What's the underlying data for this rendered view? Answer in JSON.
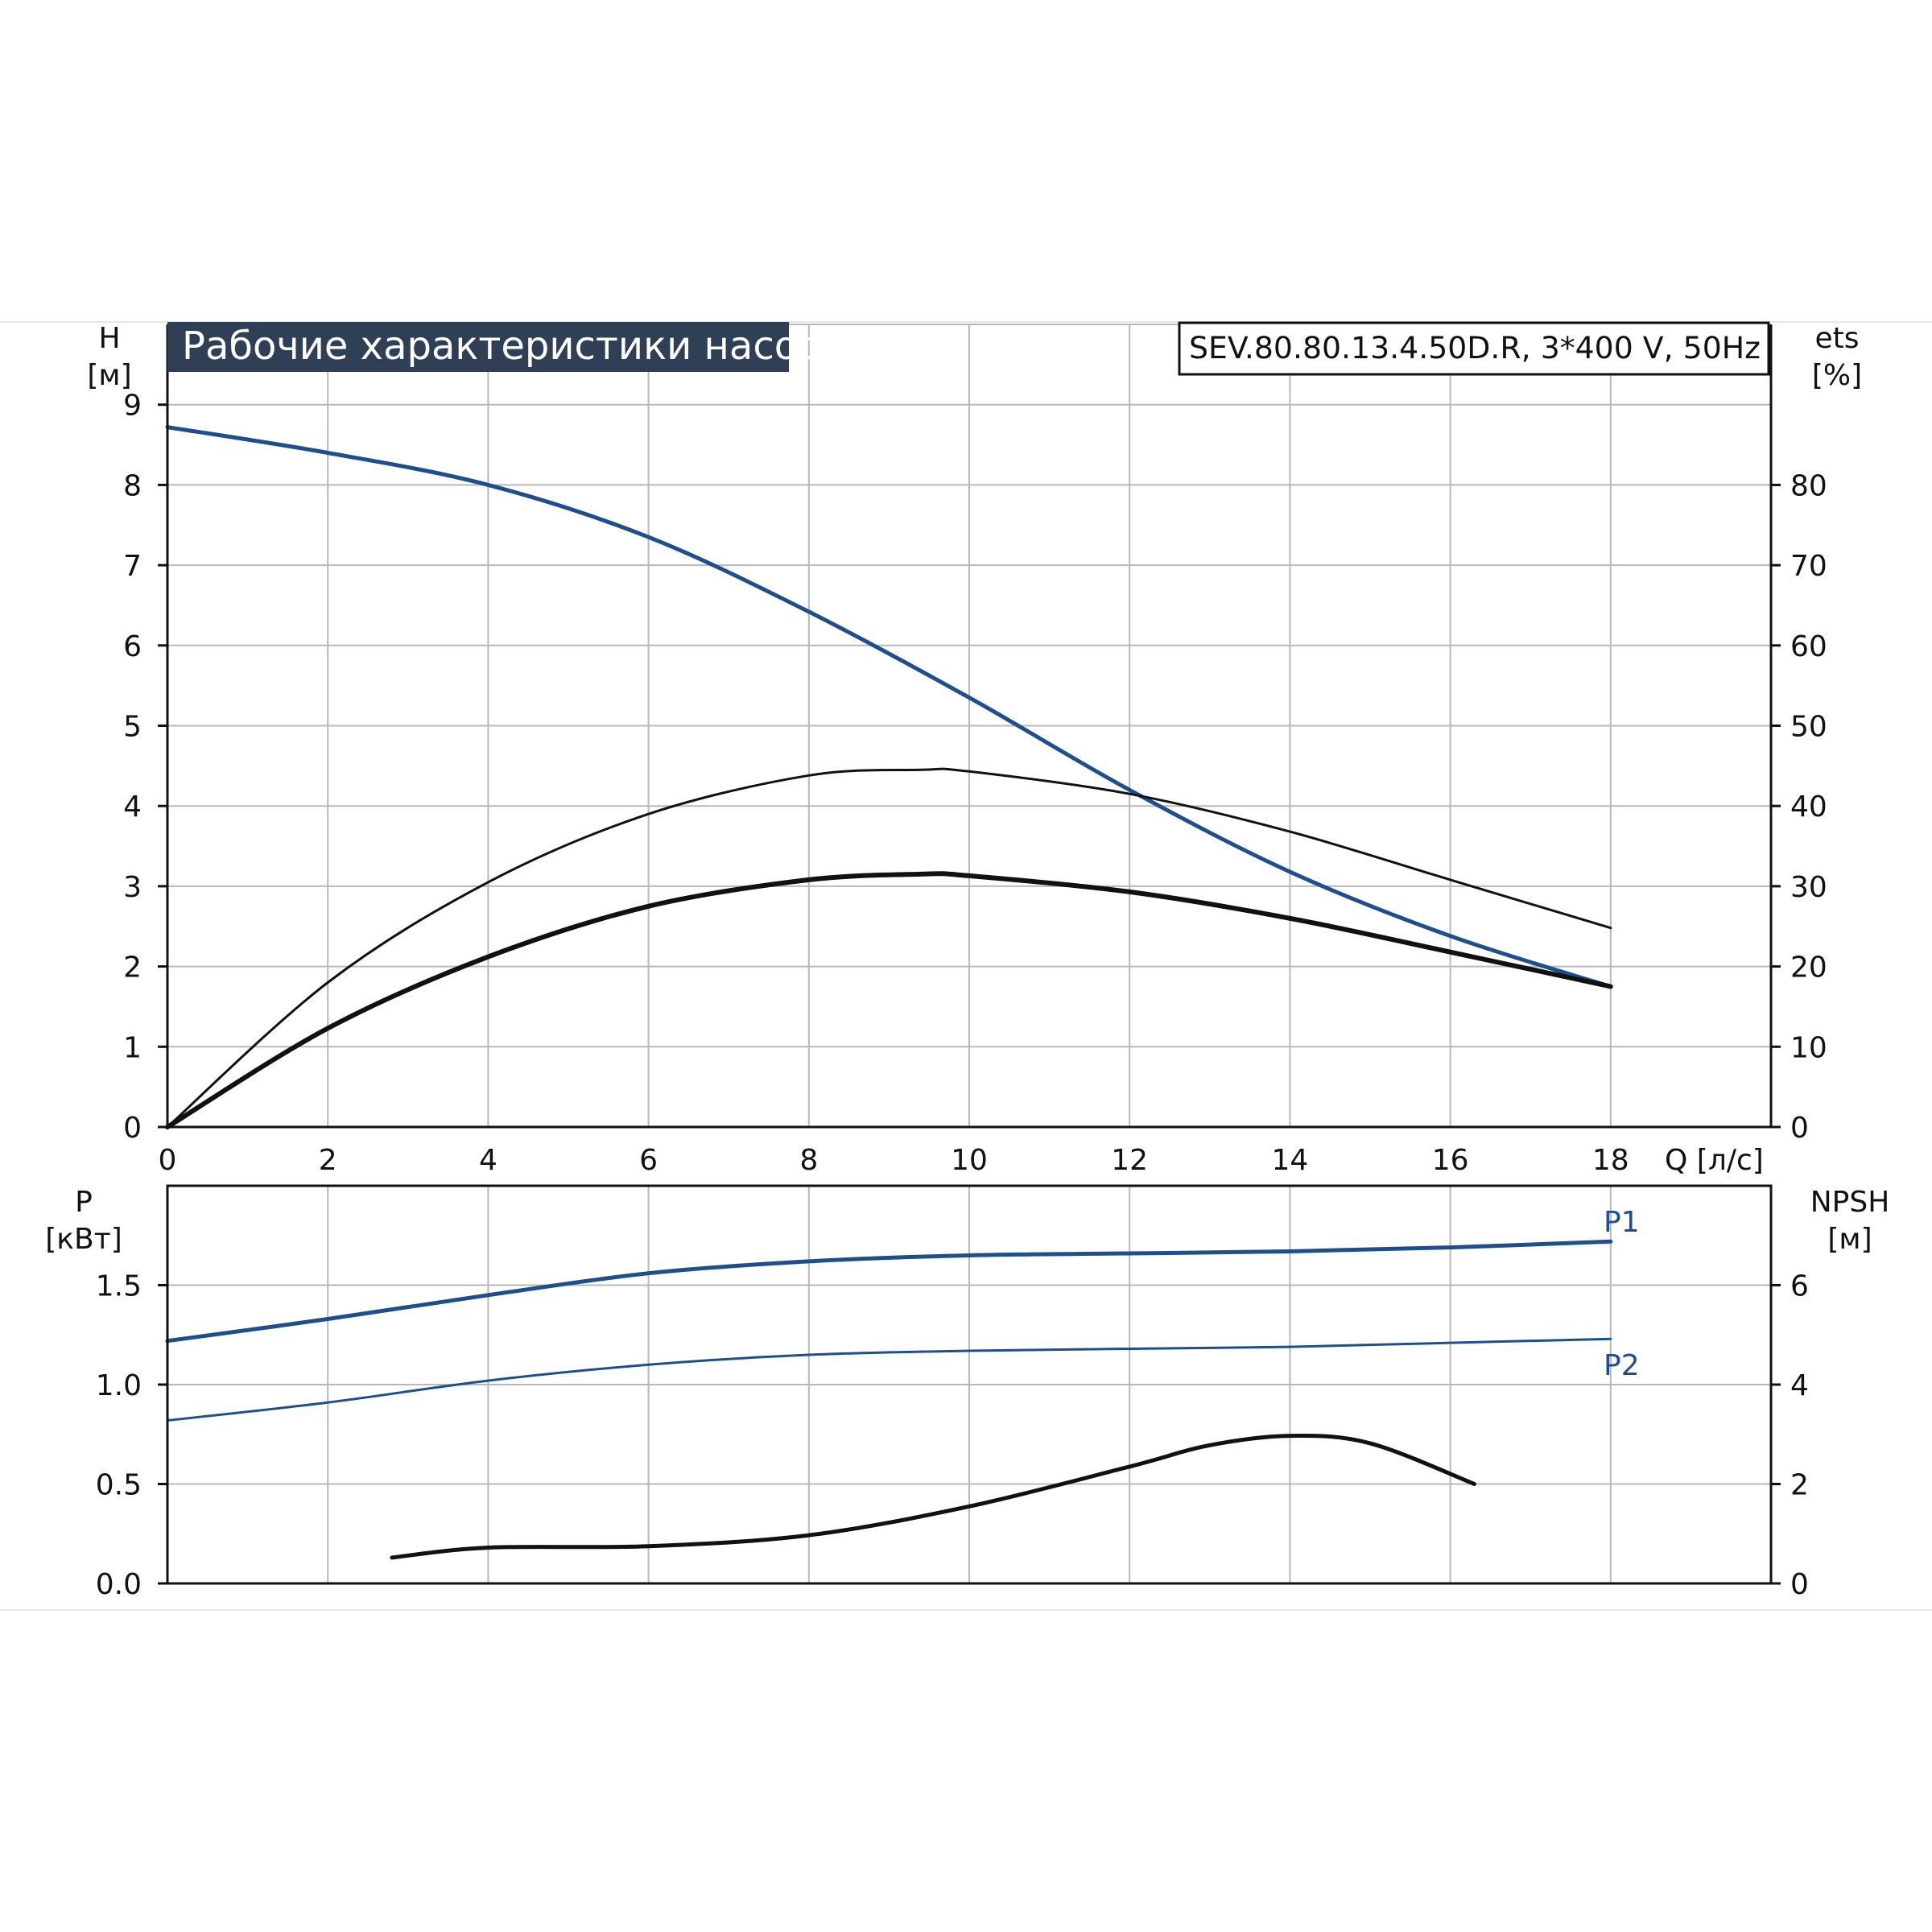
{
  "title": "Рабочие характеристики насоса",
  "model": "SEV.80.80.13.4.50D.R, 3*400 V, 50Hz",
  "colors": {
    "blue": "#1f4e8c",
    "black": "#111111",
    "grid": "#b8b8b8",
    "title_bg": "#2f3f55"
  },
  "chart_data": [
    {
      "type": "line",
      "panel": "head-efficiency",
      "xlabel": "Q [л/с]",
      "ylabel": "H\n[м]",
      "y2label": "ets\n[%]",
      "xlim": [
        0,
        20
      ],
      "ylim": [
        0,
        10
      ],
      "y2lim": [
        0,
        100
      ],
      "xticks": [
        0,
        2,
        4,
        6,
        8,
        10,
        12,
        14,
        16,
        18
      ],
      "yticks": [
        0,
        1,
        2,
        3,
        4,
        5,
        6,
        7,
        8,
        9
      ],
      "y2ticks": [
        0,
        10,
        20,
        30,
        40,
        50,
        60,
        70,
        80
      ],
      "grid": true,
      "series": [
        {
          "axis": "left",
          "color": "blue",
          "width": 5,
          "x": [
            0,
            2,
            4,
            6,
            8,
            10,
            12,
            14,
            16,
            18
          ],
          "y": [
            8.72,
            8.4,
            8.0,
            7.35,
            6.42,
            5.35,
            4.2,
            3.18,
            2.38,
            1.75
          ]
        },
        {
          "axis": "right",
          "color": "black",
          "width": 3,
          "x": [
            0,
            2,
            4,
            6,
            8,
            9.4,
            10,
            12,
            14,
            16,
            18
          ],
          "y": [
            0,
            18,
            30.5,
            39,
            43.8,
            44.5,
            44.3,
            41.5,
            36.8,
            30.8,
            24.8
          ]
        },
        {
          "axis": "right",
          "color": "black",
          "width": 6,
          "x": [
            0,
            2,
            4,
            6,
            8,
            9.4,
            10,
            12,
            14,
            16,
            18
          ],
          "y": [
            0,
            12.3,
            21.2,
            27.5,
            30.8,
            31.5,
            31.3,
            29.3,
            26,
            21.8,
            17.5
          ]
        }
      ]
    },
    {
      "type": "line",
      "panel": "power-npsh",
      "ylabel": "P\n[кВт]",
      "y2label": "NPSH\n[м]",
      "xlim": [
        0,
        20
      ],
      "ylim": [
        0,
        2
      ],
      "y2lim": [
        0,
        8
      ],
      "yticks": [
        0.0,
        0.5,
        1.0,
        1.5
      ],
      "y2ticks": [
        0,
        2,
        4,
        6
      ],
      "grid": true,
      "series": [
        {
          "name": "P1",
          "axis": "left",
          "color": "blue",
          "width": 5,
          "x": [
            0,
            2,
            4,
            6,
            8,
            10,
            12,
            14,
            16,
            18
          ],
          "y": [
            1.22,
            1.33,
            1.45,
            1.56,
            1.62,
            1.65,
            1.66,
            1.67,
            1.69,
            1.72
          ]
        },
        {
          "name": "P2",
          "axis": "left",
          "color": "blue",
          "width": 3,
          "x": [
            0,
            2,
            4,
            6,
            8,
            10,
            12,
            14,
            16,
            18
          ],
          "y": [
            0.82,
            0.91,
            1.02,
            1.1,
            1.15,
            1.17,
            1.18,
            1.19,
            1.21,
            1.23
          ]
        },
        {
          "axis": "right",
          "color": "black",
          "width": 5,
          "x": [
            2.8,
            4,
            6,
            8,
            10,
            12,
            13,
            14,
            15,
            16.3
          ],
          "y": [
            0.52,
            0.72,
            0.75,
            0.97,
            1.55,
            2.35,
            2.78,
            2.97,
            2.82,
            2.0
          ]
        }
      ]
    }
  ]
}
